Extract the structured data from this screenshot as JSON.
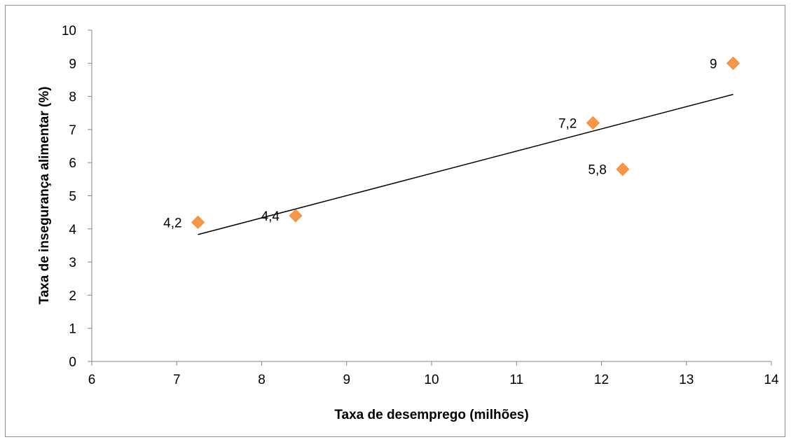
{
  "chart_data": {
    "type": "scatter",
    "title": "",
    "xlabel": "Taxa de desemprego (milhões)",
    "ylabel": "Taxa de insegurança alimentar (%)",
    "xlim": [
      6,
      14
    ],
    "ylim": [
      0,
      10
    ],
    "xticks": [
      "6",
      "7",
      "8",
      "9",
      "10",
      "11",
      "12",
      "13",
      "14"
    ],
    "yticks": [
      "0",
      "1",
      "2",
      "3",
      "4",
      "5",
      "6",
      "7",
      "8",
      "9",
      "10"
    ],
    "grid": false,
    "legend": "none",
    "marker": "diamond",
    "marker_color": "#F79646",
    "trendline_color": "#000000",
    "points": [
      {
        "x": 7.25,
        "y": 4.2,
        "label": "4,2"
      },
      {
        "x": 8.4,
        "y": 4.4,
        "label": "4,4"
      },
      {
        "x": 11.9,
        "y": 7.2,
        "label": "7,2"
      },
      {
        "x": 12.25,
        "y": 5.8,
        "label": "5,8"
      },
      {
        "x": 13.55,
        "y": 9.0,
        "label": "9"
      }
    ],
    "trendline": {
      "type": "linear",
      "x_start": 7.25,
      "y_start": 3.83,
      "x_end": 13.55,
      "y_end": 8.06
    }
  }
}
